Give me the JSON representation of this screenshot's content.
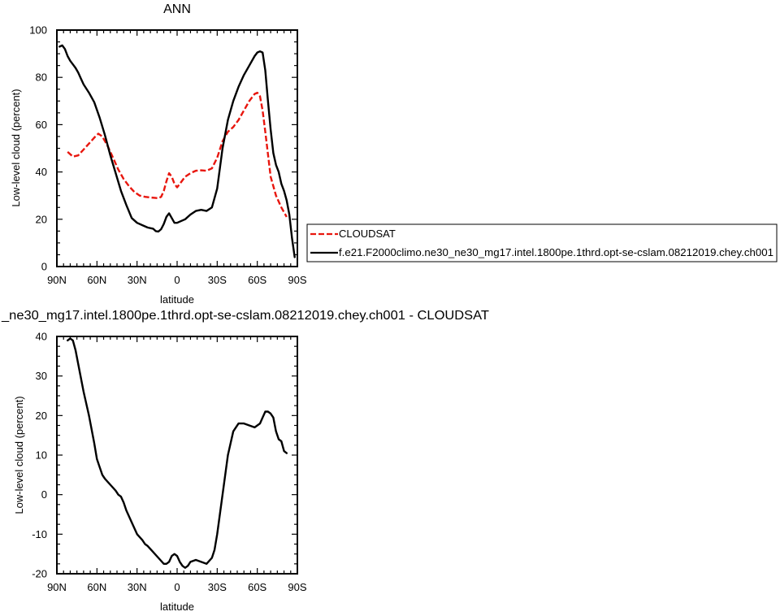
{
  "chart_data": [
    {
      "type": "line",
      "title": "ANN",
      "xlabel": "latitude",
      "ylabel": "Low-level cloud (percent)",
      "xlim": [
        90,
        -90
      ],
      "ylim": [
        0,
        100
      ],
      "xticks": [
        90,
        60,
        30,
        0,
        -30,
        -60,
        -90
      ],
      "xticklabels": [
        "90N",
        "60N",
        "30N",
        "0",
        "30S",
        "60S",
        "90S"
      ],
      "yticks": [
        0,
        20,
        40,
        60,
        80,
        100
      ],
      "yticklabels": [
        "0",
        "20",
        "40",
        "60",
        "80",
        "100"
      ],
      "legend_position": "right",
      "series": [
        {
          "name": "CLOUDSAT",
          "color": "#e8160e",
          "style": "dashed",
          "x": [
            82,
            78,
            74,
            70,
            66,
            62,
            59,
            56,
            52,
            48,
            44,
            40,
            36,
            32,
            28,
            24,
            20,
            16,
            14,
            12,
            10,
            8,
            6,
            4,
            2,
            0,
            -2,
            -6,
            -10,
            -14,
            -18,
            -22,
            -26,
            -30,
            -34,
            -38,
            -42,
            -46,
            -50,
            -54,
            -58,
            -60,
            -62,
            -64,
            -66,
            -70,
            -74,
            -78,
            -82
          ],
          "y": [
            48.5,
            46.5,
            47,
            49.5,
            52,
            54.5,
            56.2,
            55,
            51,
            46,
            41,
            37,
            34,
            31.5,
            30,
            29.5,
            29.2,
            29,
            28.9,
            29.5,
            32,
            36,
            39.5,
            38,
            35,
            33.5,
            35,
            38,
            39.5,
            40.5,
            40.7,
            40.5,
            41.5,
            46,
            53,
            57,
            59,
            62,
            66,
            70,
            73,
            73.5,
            72,
            66,
            57,
            38,
            30,
            25,
            21
          ]
        },
        {
          "name": "f.e21.F2000climo.ne30_ne30_mg17.intel.1800pe.1thrd.opt-se-cslam.08212019.chey.ch001",
          "color": "#000000",
          "style": "solid",
          "x": [
            88,
            86,
            84,
            82,
            80,
            78,
            76,
            74,
            72,
            70,
            66,
            62,
            58,
            54,
            50,
            46,
            42,
            38,
            34,
            30,
            26,
            22,
            18,
            16,
            14,
            12,
            10,
            8,
            6,
            4,
            2,
            0,
            -2,
            -6,
            -10,
            -14,
            -18,
            -22,
            -26,
            -30,
            -34,
            -38,
            -42,
            -46,
            -50,
            -54,
            -58,
            -60,
            -62,
            -64,
            -66,
            -68,
            -70,
            -72,
            -74,
            -76,
            -78,
            -80,
            -82,
            -84,
            -86,
            -88
          ],
          "y": [
            93,
            93.5,
            92,
            89,
            87,
            85.5,
            84,
            82,
            79.5,
            77,
            73.5,
            69.5,
            63,
            55.5,
            47,
            39.5,
            32,
            26,
            20.5,
            18.5,
            17.5,
            16.5,
            16,
            15,
            14.8,
            15.8,
            18,
            21,
            22.5,
            20.5,
            18.5,
            18.5,
            19,
            20,
            22,
            23.5,
            24,
            23.5,
            25,
            33,
            50,
            62,
            70,
            76,
            81,
            85,
            89,
            90.5,
            91,
            90.5,
            83,
            70,
            58,
            48,
            43,
            40,
            35,
            32,
            28,
            22,
            12,
            4
          ]
        }
      ]
    },
    {
      "type": "line",
      "title": "_ne30_mg17.intel.1800pe.1thrd.opt-se-cslam.08212019.chey.ch001 - CLOUDSAT",
      "xlabel": "latitude",
      "ylabel": "Low-level cloud (percent)",
      "xlim": [
        90,
        -90
      ],
      "ylim": [
        -20,
        40
      ],
      "xticks": [
        90,
        60,
        30,
        0,
        -30,
        -60,
        -90
      ],
      "xticklabels": [
        "90N",
        "60N",
        "30N",
        "0",
        "30S",
        "60S",
        "90S"
      ],
      "yticks": [
        -20,
        -10,
        0,
        10,
        20,
        30,
        40
      ],
      "yticklabels": [
        "-20",
        "-10",
        "0",
        "10",
        "20",
        "30",
        "40"
      ],
      "series": [
        {
          "color": "#000000",
          "style": "solid",
          "x": [
            82,
            80,
            78,
            76,
            74,
            72,
            70,
            66,
            62,
            60,
            58,
            56,
            54,
            50,
            46,
            44,
            42,
            40,
            38,
            34,
            30,
            26,
            24,
            22,
            18,
            14,
            10,
            8,
            6,
            4,
            2,
            0,
            -2,
            -4,
            -6,
            -8,
            -10,
            -14,
            -18,
            -22,
            -26,
            -28,
            -30,
            -34,
            -38,
            -42,
            -46,
            -50,
            -54,
            -58,
            -62,
            -64,
            -66,
            -68,
            -70,
            -72,
            -74,
            -76,
            -78,
            -80,
            -82
          ],
          "y": [
            39,
            39.5,
            39,
            36.5,
            33,
            29.5,
            26,
            20,
            13,
            9,
            7,
            5,
            4,
            2.5,
            1,
            0,
            -0.5,
            -2,
            -4,
            -7,
            -10,
            -11.5,
            -12.5,
            -13,
            -14.5,
            -16,
            -17.5,
            -17.5,
            -17,
            -15.5,
            -15,
            -15.5,
            -17,
            -18,
            -18.5,
            -18,
            -17,
            -16.5,
            -17,
            -17.5,
            -16,
            -14,
            -10,
            0,
            10,
            16,
            18,
            18,
            17.5,
            17,
            18,
            19.5,
            21,
            21,
            20.5,
            19.5,
            16,
            14,
            13.5,
            11,
            10.5
          ]
        }
      ]
    }
  ],
  "legend": {
    "entries": [
      {
        "label": "CLOUDSAT",
        "color": "#e8160e",
        "style": "dashed"
      },
      {
        "label": "f.e21.F2000climo.ne30_ne30_mg17.intel.1800pe.1thrd.opt-se-cslam.08212019.chey.ch001",
        "color": "#000000",
        "style": "solid"
      }
    ]
  }
}
